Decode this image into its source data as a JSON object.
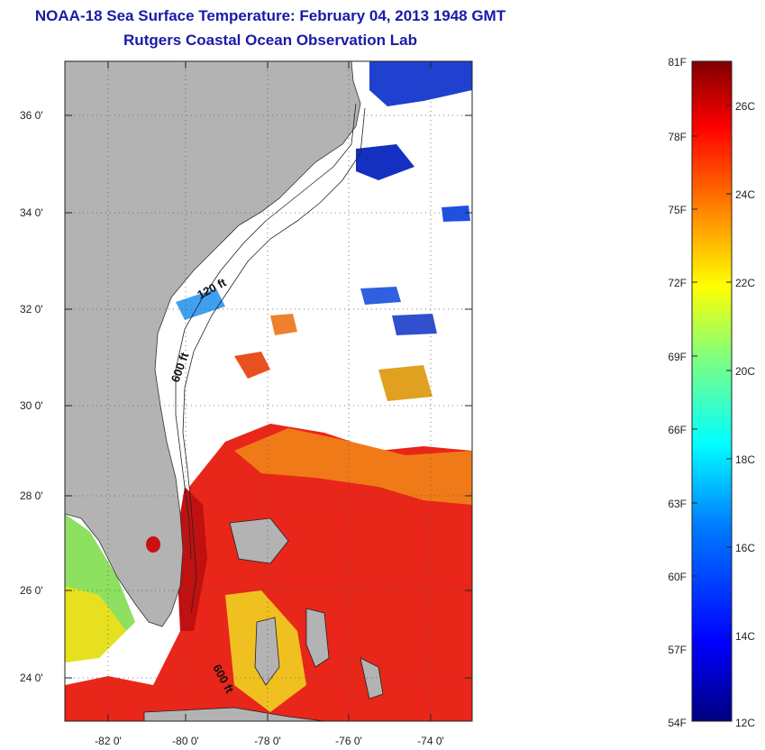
{
  "header": {
    "title": "NOAA-18 Sea Surface Temperature:  February 04, 2013 1948 GMT",
    "subtitle": "Rutgers Coastal Ocean Observation Lab"
  },
  "map": {
    "lat_labels": [
      "36 0'",
      "34 0'",
      "32 0'",
      "30 0'",
      "28 0'",
      "26 0'",
      "24 0'"
    ],
    "lon_labels": [
      "-82 0'",
      "-80 0'",
      "-78 0'",
      "-76 0'",
      "-74 0'"
    ],
    "contour_labels": [
      "120 ft",
      "600 ft",
      "600 ft"
    ],
    "colors": {
      "land": "#b3b3b3",
      "cloud": "#ffffff",
      "grid": "#555555"
    }
  },
  "colorbar": {
    "fahrenheit_labels": [
      "81F",
      "78F",
      "75F",
      "72F",
      "69F",
      "66F",
      "63F",
      "60F",
      "57F",
      "54F"
    ],
    "celsius_labels": [
      "26C",
      "24C",
      "22C",
      "20C",
      "18C",
      "16C",
      "14C",
      "12C"
    ],
    "range_c": [
      12,
      27
    ],
    "scale": [
      "#00007f",
      "#0000ff",
      "#007fff",
      "#00ffff",
      "#7fff7f",
      "#ffff00",
      "#ff7f00",
      "#ff0000",
      "#7f0000"
    ]
  }
}
